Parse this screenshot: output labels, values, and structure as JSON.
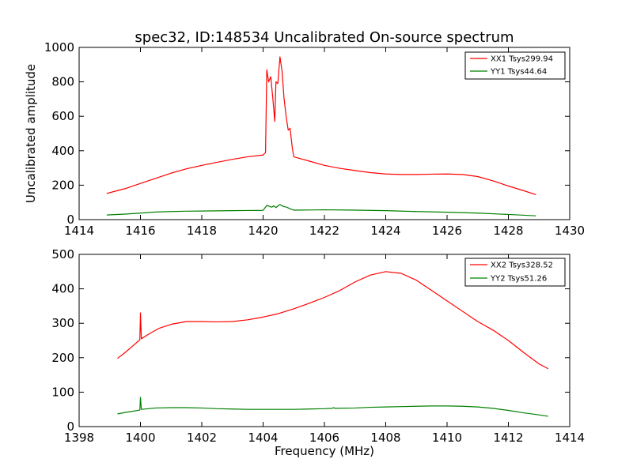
{
  "chart_data": [
    {
      "type": "line",
      "title": "spec32, ID:148534 Uncalibrated On-source spectrum",
      "xlabel": "",
      "ylabel": "Uncalibrated amplitude",
      "xlim": [
        1414,
        1430
      ],
      "ylim": [
        0,
        1000
      ],
      "xticks": [
        1414,
        1416,
        1418,
        1420,
        1422,
        1424,
        1426,
        1428,
        1430
      ],
      "yticks": [
        0,
        200,
        400,
        600,
        800,
        1000
      ],
      "legend_position": "top-right",
      "series": [
        {
          "name": "XX1 Tsys299.94",
          "color": "#ff0000",
          "points": [
            [
              1414.9,
              152
            ],
            [
              1415.5,
              180
            ],
            [
              1416.0,
              210
            ],
            [
              1416.5,
              240
            ],
            [
              1417.0,
              270
            ],
            [
              1417.5,
              295
            ],
            [
              1418.0,
              315
            ],
            [
              1418.5,
              333
            ],
            [
              1419.0,
              350
            ],
            [
              1419.5,
              365
            ],
            [
              1420.0,
              375
            ],
            [
              1420.08,
              390
            ],
            [
              1420.12,
              870
            ],
            [
              1420.18,
              800
            ],
            [
              1420.25,
              830
            ],
            [
              1420.32,
              700
            ],
            [
              1420.38,
              570
            ],
            [
              1420.42,
              800
            ],
            [
              1420.48,
              790
            ],
            [
              1420.55,
              945
            ],
            [
              1420.62,
              860
            ],
            [
              1420.68,
              710
            ],
            [
              1420.75,
              600
            ],
            [
              1420.82,
              520
            ],
            [
              1420.88,
              530
            ],
            [
              1420.95,
              420
            ],
            [
              1421.0,
              365
            ],
            [
              1421.5,
              340
            ],
            [
              1422.0,
              315
            ],
            [
              1422.5,
              298
            ],
            [
              1423.0,
              285
            ],
            [
              1423.5,
              273
            ],
            [
              1424.0,
              265
            ],
            [
              1424.5,
              262
            ],
            [
              1425.0,
              262
            ],
            [
              1425.5,
              264
            ],
            [
              1426.0,
              265
            ],
            [
              1426.5,
              262
            ],
            [
              1427.0,
              250
            ],
            [
              1427.5,
              225
            ],
            [
              1428.0,
              195
            ],
            [
              1428.5,
              168
            ],
            [
              1428.9,
              145
            ]
          ]
        },
        {
          "name": "YY1 Tsys44.64",
          "color": "#008000",
          "points": [
            [
              1414.9,
              27
            ],
            [
              1415.5,
              32
            ],
            [
              1416.0,
              38
            ],
            [
              1416.5,
              44
            ],
            [
              1417.0,
              47
            ],
            [
              1417.5,
              49
            ],
            [
              1418.0,
              50
            ],
            [
              1418.5,
              51
            ],
            [
              1419.0,
              52
            ],
            [
              1419.5,
              53
            ],
            [
              1420.0,
              54
            ],
            [
              1420.12,
              82
            ],
            [
              1420.2,
              78
            ],
            [
              1420.28,
              72
            ],
            [
              1420.35,
              80
            ],
            [
              1420.42,
              70
            ],
            [
              1420.5,
              82
            ],
            [
              1420.55,
              88
            ],
            [
              1420.62,
              80
            ],
            [
              1420.7,
              75
            ],
            [
              1420.78,
              72
            ],
            [
              1420.85,
              65
            ],
            [
              1420.95,
              58
            ],
            [
              1421.0,
              55
            ],
            [
              1421.5,
              56
            ],
            [
              1422.0,
              57
            ],
            [
              1423.0,
              55
            ],
            [
              1424.0,
              52
            ],
            [
              1425.0,
              47
            ],
            [
              1426.0,
              43
            ],
            [
              1427.0,
              38
            ],
            [
              1428.0,
              30
            ],
            [
              1428.9,
              22
            ]
          ]
        }
      ]
    },
    {
      "type": "line",
      "title": "",
      "xlabel": "Frequency (MHz)",
      "ylabel": "",
      "xlim": [
        1398,
        1414
      ],
      "ylim": [
        0,
        500
      ],
      "xticks": [
        1398,
        1400,
        1402,
        1404,
        1406,
        1408,
        1410,
        1412,
        1414
      ],
      "yticks": [
        0,
        100,
        200,
        300,
        400,
        500
      ],
      "legend_position": "top-right",
      "series": [
        {
          "name": "XX2 Tsys328.52",
          "color": "#ff0000",
          "points": [
            [
              1399.25,
              198
            ],
            [
              1399.5,
              215
            ],
            [
              1399.8,
              238
            ],
            [
              1399.98,
              252
            ],
            [
              1400.0,
              330
            ],
            [
              1400.03,
              255
            ],
            [
              1400.3,
              270
            ],
            [
              1400.6,
              285
            ],
            [
              1401.0,
              297
            ],
            [
              1401.5,
              305
            ],
            [
              1402.0,
              305
            ],
            [
              1402.5,
              304
            ],
            [
              1403.0,
              305
            ],
            [
              1403.5,
              310
            ],
            [
              1404.0,
              318
            ],
            [
              1404.5,
              328
            ],
            [
              1405.0,
              342
            ],
            [
              1405.5,
              358
            ],
            [
              1406.0,
              375
            ],
            [
              1406.5,
              395
            ],
            [
              1407.0,
              420
            ],
            [
              1407.5,
              440
            ],
            [
              1408.0,
              450
            ],
            [
              1408.5,
              445
            ],
            [
              1409.0,
              425
            ],
            [
              1409.5,
              395
            ],
            [
              1410.0,
              365
            ],
            [
              1410.5,
              335
            ],
            [
              1411.0,
              305
            ],
            [
              1411.5,
              280
            ],
            [
              1412.0,
              250
            ],
            [
              1412.5,
              215
            ],
            [
              1413.0,
              182
            ],
            [
              1413.3,
              168
            ]
          ]
        },
        {
          "name": "YY2 Tsys51.26",
          "color": "#008000",
          "points": [
            [
              1399.25,
              37
            ],
            [
              1399.5,
              41
            ],
            [
              1399.98,
              48
            ],
            [
              1400.0,
              85
            ],
            [
              1400.03,
              50
            ],
            [
              1400.5,
              54
            ],
            [
              1401.0,
              55
            ],
            [
              1401.5,
              55
            ],
            [
              1402.0,
              54
            ],
            [
              1402.5,
              52
            ],
            [
              1403.0,
              51
            ],
            [
              1403.5,
              50
            ],
            [
              1404.0,
              50
            ],
            [
              1404.5,
              50
            ],
            [
              1405.0,
              50
            ],
            [
              1405.5,
              51
            ],
            [
              1406.0,
              52
            ],
            [
              1406.25,
              53
            ],
            [
              1406.3,
              55
            ],
            [
              1406.35,
              53
            ],
            [
              1407.0,
              54
            ],
            [
              1407.5,
              56
            ],
            [
              1408.0,
              57
            ],
            [
              1408.5,
              58
            ],
            [
              1409.0,
              59
            ],
            [
              1409.5,
              60
            ],
            [
              1410.0,
              60
            ],
            [
              1410.5,
              59
            ],
            [
              1411.0,
              57
            ],
            [
              1411.5,
              53
            ],
            [
              1412.0,
              47
            ],
            [
              1412.5,
              40
            ],
            [
              1413.0,
              34
            ],
            [
              1413.3,
              30
            ]
          ]
        }
      ]
    }
  ]
}
